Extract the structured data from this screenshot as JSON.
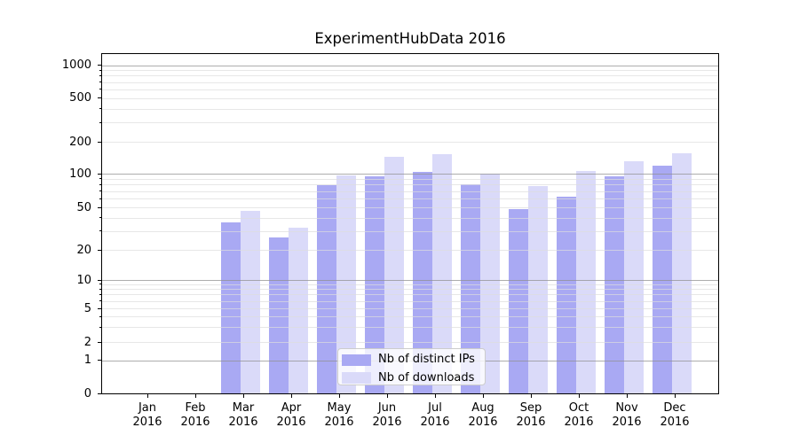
{
  "title": "ExperimentHubData 2016",
  "chart_data": {
    "type": "bar",
    "title": "ExperimentHubData 2016",
    "categories": [
      "Jan",
      "Feb",
      "Mar",
      "Apr",
      "May",
      "Jun",
      "Jul",
      "Aug",
      "Sep",
      "Oct",
      "Nov",
      "Dec"
    ],
    "category_year": "2016",
    "series": [
      {
        "name": "Nb of distinct IPs",
        "color": "#a9a9f3",
        "values": [
          0,
          0,
          36,
          26,
          79,
          94,
          103,
          80,
          48,
          62,
          94,
          119
        ]
      },
      {
        "name": "Nb of downloads",
        "color": "#dadaf9",
        "values": [
          0,
          0,
          46,
          32,
          97,
          144,
          153,
          100,
          78,
          105,
          131,
          156
        ]
      }
    ],
    "xlabel": "",
    "ylabel": "",
    "yscale": "symlog",
    "yticks": [
      0,
      1,
      2,
      5,
      10,
      20,
      50,
      100,
      200,
      500,
      1000
    ],
    "ylim": [
      0,
      1300
    ],
    "grid": "horizontal, major and minor gridlines",
    "legend_position": "lower center",
    "background": "#ffffff"
  }
}
